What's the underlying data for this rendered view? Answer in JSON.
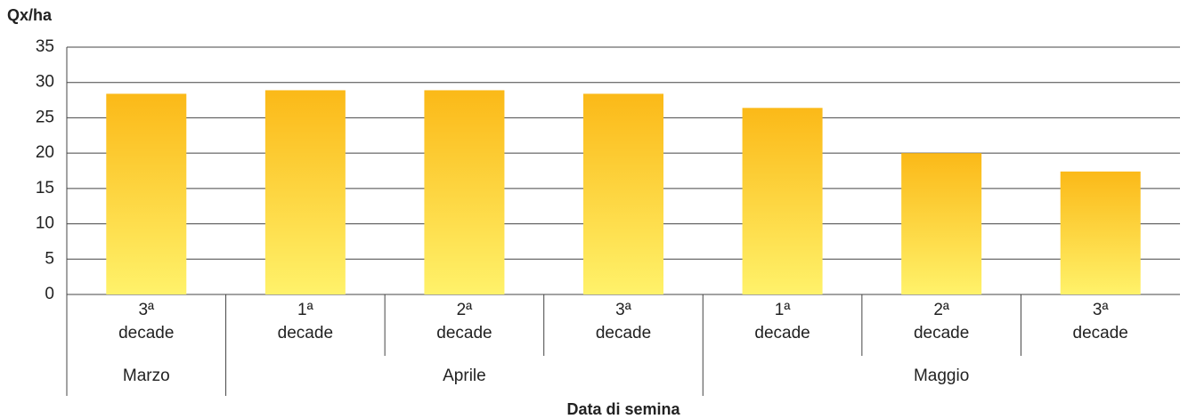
{
  "chart_data": {
    "type": "bar",
    "ylabel": "Qx/ha",
    "xlabel": "Data di semina",
    "groups": [
      {
        "name": "Marzo",
        "categories": [
          "3ª\ndecade"
        ],
        "values": [
          28.4
        ]
      },
      {
        "name": "Aprile",
        "categories": [
          "1ª\ndecade",
          "2ª\ndecade",
          "3ª\ndecade"
        ],
        "values": [
          28.9,
          28.9,
          28.4
        ]
      },
      {
        "name": "Maggio",
        "categories": [
          "1ª\ndecade",
          "2ª\ndecade",
          "3ª\ndecade"
        ],
        "values": [
          26.4,
          20.0,
          17.4
        ]
      }
    ],
    "color": [
      "#fbb918",
      "#fff26a"
    ],
    "ylim": [
      0,
      35
    ],
    "yticks": [
      0,
      5,
      10,
      15,
      20,
      25,
      30,
      35
    ],
    "grid": true
  }
}
